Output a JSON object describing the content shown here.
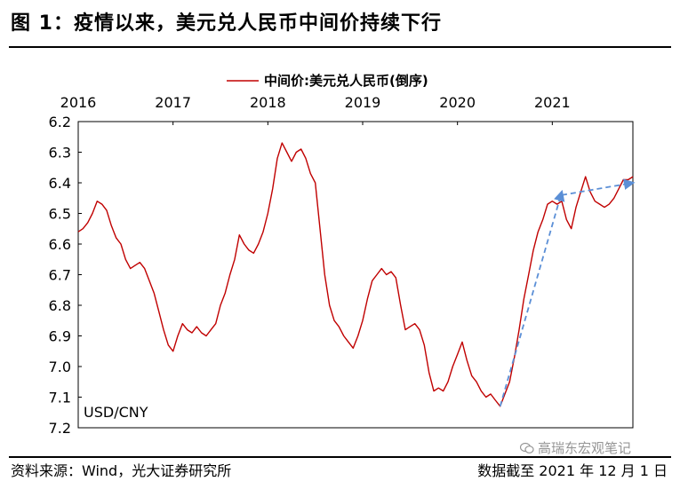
{
  "header": {
    "title": "图 1：疫情以来，美元兑人民币中间价持续下行"
  },
  "footer": {
    "source": "资料来源：Wind，光大证券研究所",
    "cutoff": "数据截至 2021 年 12 月 1 日"
  },
  "watermark": {
    "text": "高瑞东宏观笔记",
    "icon": "wechat-icon"
  },
  "chart_data": {
    "type": "line",
    "title": "",
    "xlabel": "",
    "ylabel": "USD/CNY",
    "y_inverted": true,
    "ylim": [
      6.2,
      7.2
    ],
    "yticks": [
      "6.2",
      "6.3",
      "6.4",
      "6.5",
      "6.6",
      "6.7",
      "6.8",
      "6.9",
      "7.0",
      "7.1",
      "7.2"
    ],
    "xlim": [
      2016.0,
      2021.85
    ],
    "xticks": [
      {
        "label": "2016",
        "x": 2016.0
      },
      {
        "label": "2017",
        "x": 2017.0
      },
      {
        "label": "2018",
        "x": 2018.0
      },
      {
        "label": "2019",
        "x": 2019.0
      },
      {
        "label": "2020",
        "x": 2020.0
      },
      {
        "label": "2021",
        "x": 2021.0
      }
    ],
    "legend": {
      "position": "top-center"
    },
    "grid": false,
    "series": [
      {
        "name": "中间价:美元兑人民币(倒序)",
        "color": "#c00000",
        "points": [
          [
            2016.0,
            6.56
          ],
          [
            2016.05,
            6.55
          ],
          [
            2016.1,
            6.53
          ],
          [
            2016.15,
            6.5
          ],
          [
            2016.2,
            6.46
          ],
          [
            2016.25,
            6.47
          ],
          [
            2016.3,
            6.49
          ],
          [
            2016.35,
            6.54
          ],
          [
            2016.4,
            6.58
          ],
          [
            2016.45,
            6.6
          ],
          [
            2016.5,
            6.65
          ],
          [
            2016.55,
            6.68
          ],
          [
            2016.6,
            6.67
          ],
          [
            2016.65,
            6.66
          ],
          [
            2016.7,
            6.68
          ],
          [
            2016.75,
            6.72
          ],
          [
            2016.8,
            6.76
          ],
          [
            2016.85,
            6.82
          ],
          [
            2016.9,
            6.88
          ],
          [
            2016.95,
            6.93
          ],
          [
            2017.0,
            6.95
          ],
          [
            2017.05,
            6.9
          ],
          [
            2017.1,
            6.86
          ],
          [
            2017.15,
            6.88
          ],
          [
            2017.2,
            6.89
          ],
          [
            2017.25,
            6.87
          ],
          [
            2017.3,
            6.89
          ],
          [
            2017.35,
            6.9
          ],
          [
            2017.4,
            6.88
          ],
          [
            2017.45,
            6.86
          ],
          [
            2017.5,
            6.8
          ],
          [
            2017.55,
            6.76
          ],
          [
            2017.6,
            6.7
          ],
          [
            2017.65,
            6.65
          ],
          [
            2017.7,
            6.57
          ],
          [
            2017.75,
            6.6
          ],
          [
            2017.8,
            6.62
          ],
          [
            2017.85,
            6.63
          ],
          [
            2017.9,
            6.6
          ],
          [
            2017.95,
            6.56
          ],
          [
            2018.0,
            6.5
          ],
          [
            2018.05,
            6.42
          ],
          [
            2018.1,
            6.32
          ],
          [
            2018.15,
            6.27
          ],
          [
            2018.2,
            6.3
          ],
          [
            2018.25,
            6.33
          ],
          [
            2018.3,
            6.3
          ],
          [
            2018.35,
            6.29
          ],
          [
            2018.4,
            6.32
          ],
          [
            2018.45,
            6.37
          ],
          [
            2018.5,
            6.4
          ],
          [
            2018.55,
            6.55
          ],
          [
            2018.6,
            6.7
          ],
          [
            2018.65,
            6.8
          ],
          [
            2018.7,
            6.85
          ],
          [
            2018.75,
            6.87
          ],
          [
            2018.8,
            6.9
          ],
          [
            2018.85,
            6.92
          ],
          [
            2018.9,
            6.94
          ],
          [
            2018.95,
            6.9
          ],
          [
            2019.0,
            6.85
          ],
          [
            2019.05,
            6.78
          ],
          [
            2019.1,
            6.72
          ],
          [
            2019.15,
            6.7
          ],
          [
            2019.2,
            6.68
          ],
          [
            2019.25,
            6.7
          ],
          [
            2019.3,
            6.69
          ],
          [
            2019.35,
            6.71
          ],
          [
            2019.4,
            6.8
          ],
          [
            2019.45,
            6.88
          ],
          [
            2019.5,
            6.87
          ],
          [
            2019.55,
            6.86
          ],
          [
            2019.6,
            6.88
          ],
          [
            2019.65,
            6.93
          ],
          [
            2019.7,
            7.02
          ],
          [
            2019.75,
            7.08
          ],
          [
            2019.8,
            7.07
          ],
          [
            2019.85,
            7.08
          ],
          [
            2019.9,
            7.05
          ],
          [
            2019.95,
            7.0
          ],
          [
            2020.0,
            6.96
          ],
          [
            2020.05,
            6.92
          ],
          [
            2020.1,
            6.98
          ],
          [
            2020.15,
            7.03
          ],
          [
            2020.2,
            7.05
          ],
          [
            2020.25,
            7.08
          ],
          [
            2020.3,
            7.1
          ],
          [
            2020.35,
            7.09
          ],
          [
            2020.4,
            7.11
          ],
          [
            2020.45,
            7.13
          ],
          [
            2020.5,
            7.09
          ],
          [
            2020.55,
            7.05
          ],
          [
            2020.6,
            6.97
          ],
          [
            2020.65,
            6.88
          ],
          [
            2020.7,
            6.78
          ],
          [
            2020.75,
            6.7
          ],
          [
            2020.8,
            6.62
          ],
          [
            2020.85,
            6.56
          ],
          [
            2020.9,
            6.52
          ],
          [
            2020.95,
            6.47
          ],
          [
            2021.0,
            6.46
          ],
          [
            2021.05,
            6.47
          ],
          [
            2021.1,
            6.46
          ],
          [
            2021.15,
            6.52
          ],
          [
            2021.2,
            6.55
          ],
          [
            2021.25,
            6.48
          ],
          [
            2021.3,
            6.43
          ],
          [
            2021.35,
            6.38
          ],
          [
            2021.4,
            6.43
          ],
          [
            2021.45,
            6.46
          ],
          [
            2021.5,
            6.47
          ],
          [
            2021.55,
            6.48
          ],
          [
            2021.6,
            6.47
          ],
          [
            2021.65,
            6.45
          ],
          [
            2021.7,
            6.42
          ],
          [
            2021.75,
            6.39
          ],
          [
            2021.8,
            6.39
          ],
          [
            2021.85,
            6.38
          ]
        ]
      }
    ],
    "annotations": [
      {
        "type": "arrow",
        "style": "dashed",
        "color": "#5b8fd6",
        "from": [
          2020.45,
          7.13
        ],
        "to": [
          2021.1,
          6.43
        ]
      },
      {
        "type": "arrow",
        "style": "dashed",
        "color": "#5b8fd6",
        "from": [
          2021.1,
          6.44
        ],
        "to": [
          2021.85,
          6.4
        ]
      }
    ]
  }
}
